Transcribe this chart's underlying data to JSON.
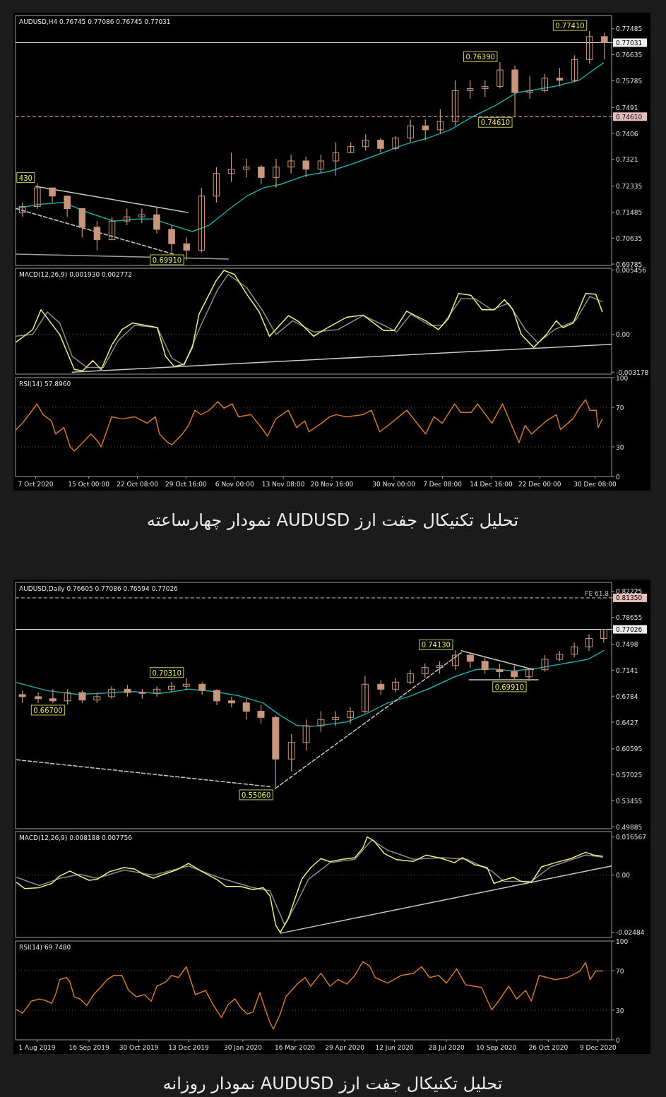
{
  "chart_data": [
    {
      "type": "candlestick",
      "title": "AUDUSD,H4 0.76745 0.77086 0.76745 0.77031",
      "color": "#c8967d",
      "tick_labels": "y",
      "xlim": [
        "2020-10-03T23:00",
        "2021-01-01T20:00"
      ],
      "ylim": [
        0.6974,
        0.7792
      ],
      "yticks": [
        0.77485,
        {
          "value": 0.77031,
          "label": "0.77031"
        },
        0.76635,
        0.75785,
        0.7491,
        {
          "value": 0.7461,
          "label": "0.74610"
        },
        0.7406,
        0.7321,
        0.72335,
        0.71485,
        0.70635,
        0.69785
      ],
      "x": [
        "2020-10-05T00:00",
        "2020-10-07T06:00",
        "2020-10-09T12:00",
        "2020-10-11T18:00",
        "2020-10-14T00:00",
        "2020-10-16T06:00",
        "2020-10-18T12:00",
        "2020-10-20T18:00",
        "2020-10-23T00:00",
        "2020-10-25T06:00",
        "2020-10-27T12:00",
        "2020-10-29T18:00",
        "2020-11-01T00:00",
        "2020-11-03T06:00",
        "2020-11-05T12:00",
        "2020-11-07T18:00",
        "2020-11-10T00:00",
        "2020-11-12T06:00",
        "2020-11-14T12:00",
        "2020-11-16T18:00",
        "2020-11-19T00:00",
        "2020-11-21T06:00",
        "2020-11-23T12:00",
        "2020-11-25T18:00",
        "2020-11-28T00:00",
        "2020-11-30T06:00",
        "2020-12-02T12:00",
        "2020-12-04T18:00",
        "2020-12-07T00:00",
        "2020-12-09T06:00",
        "2020-12-11T12:00",
        "2020-12-13T18:00",
        "2020-12-16T00:00",
        "2020-12-18T06:00",
        "2020-12-20T12:00",
        "2020-12-22T18:00",
        "2020-12-25T00:00",
        "2020-12-27T06:00",
        "2020-12-29T12:00",
        "2020-12-31T18:00"
      ],
      "ohlc": [
        [
          0.7146,
          0.718,
          0.7133,
          0.7167
        ],
        [
          0.7167,
          0.7243,
          0.716,
          0.7228
        ],
        [
          0.7228,
          0.7228,
          0.718,
          0.7201
        ],
        [
          0.7201,
          0.7201,
          0.7133,
          0.716
        ],
        [
          0.716,
          0.716,
          0.7065,
          0.7099
        ],
        [
          0.7099,
          0.7119,
          0.7024,
          0.7058
        ],
        [
          0.7058,
          0.7133,
          0.7058,
          0.7119
        ],
        [
          0.7119,
          0.716,
          0.7106,
          0.7133
        ],
        [
          0.7133,
          0.716,
          0.7112,
          0.714
        ],
        [
          0.714,
          0.7167,
          0.7079,
          0.7092
        ],
        [
          0.7092,
          0.7106,
          0.7017,
          0.7045
        ],
        [
          0.7045,
          0.7065,
          0.6991,
          0.7024
        ],
        [
          0.7024,
          0.7228,
          0.7017,
          0.7201
        ],
        [
          0.7201,
          0.7296,
          0.718,
          0.7275
        ],
        [
          0.7275,
          0.7343,
          0.7248,
          0.7289
        ],
        [
          0.7289,
          0.7323,
          0.7262,
          0.7296
        ],
        [
          0.7296,
          0.7302,
          0.7241,
          0.7262
        ],
        [
          0.7262,
          0.7323,
          0.7228,
          0.7296
        ],
        [
          0.7296,
          0.7336,
          0.7275,
          0.7316
        ],
        [
          0.7316,
          0.733,
          0.7262,
          0.7289
        ],
        [
          0.7289,
          0.7336,
          0.7275,
          0.7316
        ],
        [
          0.7316,
          0.7377,
          0.7268,
          0.7343
        ],
        [
          0.7343,
          0.7377,
          0.7343,
          0.7363
        ],
        [
          0.7363,
          0.7404,
          0.735,
          0.7384
        ],
        [
          0.7384,
          0.7391,
          0.7343,
          0.7357
        ],
        [
          0.7357,
          0.7397,
          0.735,
          0.7391
        ],
        [
          0.7391,
          0.7452,
          0.7377,
          0.7431
        ],
        [
          0.7431,
          0.7452,
          0.7384,
          0.7418
        ],
        [
          0.7418,
          0.7485,
          0.7404,
          0.7445
        ],
        [
          0.7445,
          0.758,
          0.7431,
          0.7546
        ],
        [
          0.7546,
          0.758,
          0.7519,
          0.7553
        ],
        [
          0.7553,
          0.758,
          0.7526,
          0.756
        ],
        [
          0.756,
          0.7639,
          0.7553,
          0.7614
        ],
        [
          0.7614,
          0.7628,
          0.7461,
          0.754
        ],
        [
          0.754,
          0.7594,
          0.7519,
          0.7546
        ],
        [
          0.7546,
          0.7601,
          0.754,
          0.7587
        ],
        [
          0.7587,
          0.7621,
          0.756,
          0.758
        ],
        [
          0.758,
          0.7662,
          0.7574,
          0.7648
        ],
        [
          0.7648,
          0.7741,
          0.7635,
          0.7723
        ],
        [
          0.7723,
          0.7736,
          0.7648,
          0.7703
        ]
      ],
      "series": [
        {
          "type": "line",
          "color": "#1fa5a5",
          "x": [
            "2020-10-04T01:00",
            "2020-10-07T11:00",
            "2020-10-11T05:00",
            "2020-10-15T00:00",
            "2020-10-18T19:00",
            "2020-10-22T13:00",
            "2020-10-24T18:00",
            "2020-10-27T12:00",
            "2020-10-30T15:00",
            "2020-11-02T04:00",
            "2020-11-05T07:00",
            "2020-11-07T20:00",
            "2020-11-10T08:00",
            "2020-11-12T21:00",
            "2020-11-16T15:00",
            "2020-11-20T08:00",
            "2020-11-24T02:00",
            "2020-11-27T21:00",
            "2020-12-01T16:00",
            "2020-12-05T10:00",
            "2020-12-08T12:00",
            "2020-12-11T15:00",
            "2020-12-15T10:00",
            "2020-12-18T13:00",
            "2020-12-20T11:00",
            "2020-12-24T05:00",
            "2020-12-27T22:00",
            "2020-12-31T14:00"
          ],
          "values": [
            0.716,
            0.7174,
            0.718,
            0.7146,
            0.7119,
            0.7126,
            0.7126,
            0.7106,
            0.7085,
            0.7106,
            0.716,
            0.7201,
            0.7228,
            0.7239,
            0.7268,
            0.7282,
            0.7309,
            0.7339,
            0.737,
            0.7393,
            0.7418,
            0.7458,
            0.7499,
            0.754,
            0.7546,
            0.756,
            0.758,
            0.7637
          ]
        },
        {
          "type": "line",
          "color": "#c8c8c8",
          "line_style": "solid",
          "x": [
            "2020-10-07T00:00",
            "2020-10-30T00:00"
          ],
          "values": [
            0.7233,
            0.7147
          ]
        },
        {
          "type": "line",
          "color": "#c8c8c8",
          "line_style": "dashed",
          "x": [
            "2020-10-04T01:00",
            "2020-10-27T18:00"
          ],
          "values": [
            0.716,
            0.7011
          ]
        },
        {
          "type": "line",
          "color": "#a0a0a0",
          "line_style": "solid",
          "x": [
            "2020-10-04T01:00",
            "2020-11-05T01:00"
          ],
          "values": [
            0.7011,
            0.6995
          ]
        }
      ],
      "ref_lines": [
        {
          "axis": "y",
          "value": 0.77031,
          "color": "#f0f0f0",
          "line_style": "solid"
        },
        {
          "axis": "y",
          "value": 0.7461,
          "color": "#e6bcbc",
          "line_style": "dashed"
        }
      ],
      "annotations": [
        {
          "text": "0.77410",
          "x": "2020-12-29T12:00",
          "y": 0.7741
        },
        {
          "text": "0.76390",
          "x": "2020-12-16T00:00",
          "y": 0.7639
        },
        {
          "text": "0.74610",
          "x": "2020-12-18T06:00",
          "y": 0.7461
        },
        {
          "text": "0.69910",
          "x": "2020-10-29T18:00",
          "y": 0.6991
        },
        {
          "text": "430",
          "x": "2020-10-07T06:00",
          "y": 0.7243
        }
      ]
    },
    {
      "type": "line",
      "title": "MACD(12,26,9) 0.001930 0.002772",
      "tick_labels": "y",
      "xlim": [
        "2020-10-03T23:00",
        "2021-01-01T20:00"
      ],
      "ylim": [
        -0.00335,
        0.0056
      ],
      "yticks": [
        0.005456,
        {
          "value": 0,
          "label": "0.00"
        },
        -0.003178
      ],
      "series": [
        {
          "color": "#8a8a8a",
          "x": [
            "2020-10-04T01:00",
            "2020-10-06T13:00",
            "2020-10-08T18:00",
            "2020-10-10T15:00",
            "2020-10-12T12:00",
            "2020-10-14T17:00",
            "2020-10-17T05:00",
            "2020-10-19T10:00",
            "2020-10-21T22:00",
            "2020-10-25T08:00",
            "2020-10-27T13:00",
            "2020-10-29T09:00",
            "2020-10-31T22:00",
            "2020-11-03T10:00",
            "2020-11-05T00:00",
            "2020-11-07T20:00",
            "2020-11-10T08:00",
            "2020-11-12T06:00",
            "2020-11-14T18:00",
            "2020-11-17T22:00",
            "2020-11-21T13:00",
            "2020-11-25T09:00",
            "2020-11-28T12:00",
            "2020-11-30T10:00",
            "2020-12-02T13:00",
            "2020-12-05T10:00",
            "2020-12-07T08:00",
            "2020-12-10T03:00",
            "2020-12-12T06:00",
            "2020-12-14T19:00",
            "2020-12-17T07:00",
            "2020-12-19T20:00",
            "2020-12-21T17:00",
            "2020-12-24T05:00",
            "2020-12-27T09:00",
            "2020-12-29T13:00",
            "2020-12-31T10:00"
          ],
          "values": [
            -0.00015,
            0,
            0.0019,
            0.00097,
            -0.00184,
            -0.00278,
            -0.00278,
            -0.00053,
            0.00078,
            0.00059,
            -0.00202,
            -0.00258,
            0.00078,
            0.00377,
            0.00508,
            0.00396,
            0.0019,
            0,
            0.00116,
            0.00022,
            0.00041,
            0.0016,
            0.00078,
            0.00022,
            0.00171,
            0.00078,
            0.00078,
            0.00302,
            0.00302,
            0.00209,
            0.00265,
            0.00041,
            -0.00071,
            0.00041,
            0.00116,
            0.00321,
            0.00277
          ]
        },
        {
          "color": "#f0f080",
          "x": [
            "2020-10-04T01:00",
            "2020-10-06T13:00",
            "2020-10-07T19:00",
            "2020-10-10T15:00",
            "2020-10-12T20:00",
            "2020-10-14T02:00",
            "2020-10-15T15:00",
            "2020-10-16T21:00",
            "2020-10-18T11:00",
            "2020-10-20T00:00",
            "2020-10-21T14:00",
            "2020-10-25T08:00",
            "2020-10-26T14:00",
            "2020-10-27T21:00",
            "2020-10-29T09:00",
            "2020-10-30T15:00",
            "2020-10-31T15:00",
            "2020-11-03T04:00",
            "2020-11-04T09:00",
            "2020-11-05T23:00",
            "2020-11-07T20:00",
            "2020-11-09T17:00",
            "2020-11-11T06:00",
            "2020-11-14T03:00",
            "2020-11-15T16:00",
            "2020-11-17T22:00",
            "2020-11-19T17:00",
            "2020-11-22T20:00",
            "2020-11-25T09:00",
            "2020-11-28T12:00",
            "2020-11-30T01:00",
            "2020-12-01T22:00",
            "2020-12-04T19:00",
            "2020-12-06T17:00",
            "2020-12-08T05:00",
            "2020-12-09T18:00",
            "2020-12-11T15:00",
            "2020-12-13T07:00",
            "2020-12-15T04:00",
            "2020-12-16T16:00",
            "2020-12-17T23:00",
            "2020-12-19T05:00",
            "2020-12-21T02:00",
            "2020-12-23T00:00",
            "2020-12-24T12:00",
            "2020-12-25T12:00",
            "2020-12-27T01:00",
            "2020-12-28T22:00",
            "2020-12-30T11:00",
            "2020-12-31T10:00"
          ],
          "values": [
            -0.00064,
            0.00041,
            0.00209,
            0,
            -0.00296,
            -0.00307,
            -0.00221,
            -0.00296,
            -0.0009,
            0.00041,
            0.00097,
            0.00059,
            -0.00184,
            -0.0027,
            -0.00251,
            -0.00109,
            0.00171,
            0.00452,
            0.00542,
            0.00508,
            0.0034,
            0.0019,
            -0.00015,
            0.0016,
            0.00108,
            -0.00015,
            0.00048,
            0.00145,
            0.00164,
            0.00033,
            0.00033,
            0.00197,
            0.00116,
            0.00041,
            0.00134,
            0.00347,
            0.00332,
            0.00209,
            0.00209,
            0.00295,
            0.00209,
            0,
            -0.00109,
            0,
            0.00116,
            0.00059,
            0.00097,
            0.00347,
            0.0034,
            0.00193
          ]
        },
        {
          "color": "#c8c8c8",
          "x": [
            "2020-10-12T12:00",
            "2021-01-01T20:00"
          ],
          "values": [
            -0.00318,
            -0.00083
          ]
        }
      ],
      "ref_lines": [
        {
          "axis": "y",
          "value": 0,
          "color": "#5a5a5a",
          "line_style": "dotted"
        }
      ]
    },
    {
      "type": "line",
      "title": "RSI(14) 57.8960",
      "xlim": [
        "2020-10-03T23:00",
        "2021-01-01T20:00"
      ],
      "ylim": [
        0,
        100
      ],
      "yticks": [
        100,
        70,
        30,
        0
      ],
      "xticks": [
        {
          "value": "2020-10-07T00:00",
          "label": "7 Oct 2020"
        },
        {
          "value": "2020-10-15T00:00",
          "label": "15 Oct 00:00"
        },
        {
          "value": "2020-10-22T08:00",
          "label": "22 Oct 08:00"
        },
        {
          "value": "2020-10-29T16:00",
          "label": "29 Oct 16:00"
        },
        {
          "value": "2020-11-06T00:00",
          "label": "6 Nov 00:00"
        },
        {
          "value": "2020-11-13T08:00",
          "label": "13 Nov 08:00"
        },
        {
          "value": "2020-11-20T16:00",
          "label": "20 Nov 16:00"
        },
        {
          "value": "2020-11-30T00:00",
          "label": "30 Nov 00:00"
        },
        {
          "value": "2020-12-07T08:00",
          "label": "7 Dec 08:00"
        },
        {
          "value": "2020-12-14T16:00",
          "label": "14 Dec 16:00"
        },
        {
          "value": "2020-12-22T00:00",
          "label": "22 Dec 00:00"
        },
        {
          "value": "2020-12-30T08:00",
          "label": "30 Dec 08:00"
        }
      ],
      "series": [
        {
          "color": "#d2782a",
          "x": [
            "2020-10-04T01:00",
            "2020-10-05T00:00",
            "2020-10-06T06:00",
            "2020-10-07T04:00",
            "2020-10-08T03:00",
            "2020-10-09T09:00",
            "2020-10-10T00:00",
            "2020-10-11T06:00",
            "2020-10-12T05:00",
            "2020-10-12T20:00",
            "2020-10-14T02:00",
            "2020-10-15T08:00",
            "2020-10-16T06:00",
            "2020-10-16T21:00",
            "2020-10-18T11:00",
            "2020-10-20T00:00",
            "2020-10-21T22:00",
            "2020-10-23T19:00",
            "2020-10-25T01:00",
            "2020-10-25T16:00",
            "2020-10-26T22:00",
            "2020-10-27T13:00",
            "2020-10-29T03:00",
            "2020-10-30T01:00",
            "2020-10-31T00:00",
            "2020-10-31T22:00",
            "2020-11-02T04:00",
            "2020-11-03T11:00",
            "2020-11-04T09:00",
            "2020-11-05T15:00",
            "2020-11-06T14:00",
            "2020-11-08T11:00",
            "2020-11-10T00:00",
            "2020-11-10T23:00",
            "2020-11-12T05:00",
            "2020-11-14T02:00",
            "2020-11-15T08:00",
            "2020-11-16T14:00",
            "2020-11-17T05:00",
            "2020-11-19T02:00",
            "2020-11-20T08:00",
            "2020-11-21T07:00",
            "2020-11-22T20:00",
            "2020-11-25T09:00",
            "2020-11-26T15:00",
            "2020-11-27T21:00",
            "2020-11-29T03:00",
            "2020-12-01T23:00",
            "2020-12-03T12:00",
            "2020-12-04T19:00",
            "2020-12-06T01:00",
            "2020-12-07T07:00",
            "2020-12-09T04:00",
            "2020-12-10T02:00",
            "2020-12-11T16:00",
            "2020-12-12T15:00",
            "2020-12-14T19:00",
            "2020-12-16T09:00",
            "2020-12-17T15:00",
            "2020-12-18T21:00",
            "2020-12-19T19:00",
            "2020-12-20T18:00",
            "2020-12-22T23:00",
            "2020-12-24T12:00",
            "2020-12-25T03:00",
            "2020-12-27T00:00",
            "2020-12-27T23:00",
            "2020-12-28T22:00",
            "2020-12-29T13:00",
            "2020-12-30T12:00",
            "2020-12-30T19:00",
            "2020-12-31T10:00"
          ],
          "values": [
            47.4,
            53.9,
            64.8,
            73.5,
            62.6,
            56.1,
            43.0,
            49.6,
            30.0,
            25.7,
            34.3,
            43.0,
            36.5,
            30.0,
            60.4,
            58.3,
            60.4,
            53.9,
            60.4,
            43.0,
            34.3,
            32.2,
            43.0,
            51.7,
            67.0,
            62.6,
            67.0,
            75.7,
            69.1,
            73.5,
            60.4,
            62.6,
            49.6,
            40.9,
            58.3,
            67.0,
            49.6,
            56.1,
            45.2,
            53.9,
            60.4,
            62.6,
            60.4,
            62.6,
            67.0,
            45.2,
            51.7,
            67.0,
            53.9,
            43.0,
            60.4,
            53.9,
            73.5,
            64.8,
            64.8,
            73.5,
            53.9,
            73.5,
            53.9,
            34.3,
            51.7,
            43.0,
            56.1,
            62.6,
            47.4,
            58.3,
            69.1,
            77.8,
            67.0,
            67.0,
            49.6,
            57.9
          ]
        }
      ],
      "ref_lines": [
        {
          "axis": "y",
          "value": 70,
          "color": "#5a5a5a",
          "line_style": "dotted"
        },
        {
          "axis": "y",
          "value": 30,
          "color": "#5a5a5a",
          "line_style": "dotted"
        }
      ],
      "annotations": [
        "تحلیل تکنیکال جفت ارز AUDUSD نمودار چهارساعته"
      ]
    },
    {
      "type": "candlestick",
      "title": "AUDUSD,Daily 0.76605 0.77086 0.76594 0.77026",
      "color": "#c8967d",
      "tick_labels": "y",
      "xlim": [
        "2019-07-13",
        "2020-12-21"
      ],
      "ylim": [
        0.4962,
        0.8348
      ],
      "yticks": [
        0.82225,
        {
          "value": 0.8135,
          "label": "0.81350"
        },
        0.78655,
        {
          "value": 0.77026,
          "label": "0.77026"
        },
        0.7498,
        0.7141,
        0.6784,
        0.6427,
        0.60595,
        0.57025,
        0.53455,
        0.49885
      ],
      "x": [
        "2019-07-19",
        "2019-08-02",
        "2019-08-15",
        "2019-08-28",
        "2019-09-10",
        "2019-09-23",
        "2019-10-06",
        "2019-10-20",
        "2019-11-02",
        "2019-11-15",
        "2019-11-28",
        "2019-12-11",
        "2019-12-25",
        "2020-01-07",
        "2020-01-20",
        "2020-02-02",
        "2020-02-15",
        "2020-02-28",
        "2020-03-13",
        "2020-03-26",
        "2020-04-08",
        "2020-04-21",
        "2020-05-04",
        "2020-05-17",
        "2020-05-31",
        "2020-06-13",
        "2020-06-26",
        "2020-07-09",
        "2020-07-22",
        "2020-08-05",
        "2020-08-18",
        "2020-08-31",
        "2020-09-13",
        "2020-09-26",
        "2020-10-09",
        "2020-10-23",
        "2020-11-05",
        "2020-11-18",
        "2020-12-01",
        "2020-12-14"
      ],
      "ohlc": [
        [
          0.6806,
          0.6863,
          0.6691,
          0.6777
        ],
        [
          0.6777,
          0.6834,
          0.6691,
          0.6749
        ],
        [
          0.6749,
          0.688,
          0.6691,
          0.672
        ],
        [
          0.672,
          0.688,
          0.667,
          0.6834
        ],
        [
          0.6834,
          0.6863,
          0.6691,
          0.6731
        ],
        [
          0.6731,
          0.6834,
          0.6691,
          0.6777
        ],
        [
          0.6777,
          0.692,
          0.6749,
          0.688
        ],
        [
          0.688,
          0.6937,
          0.6777,
          0.6834
        ],
        [
          0.6834,
          0.688,
          0.6749,
          0.6823
        ],
        [
          0.6823,
          0.692,
          0.6777,
          0.688
        ],
        [
          0.688,
          0.6977,
          0.6834,
          0.692
        ],
        [
          0.692,
          0.7031,
          0.6863,
          0.6948
        ],
        [
          0.6948,
          0.6977,
          0.6806,
          0.6863
        ],
        [
          0.6863,
          0.688,
          0.6663,
          0.672
        ],
        [
          0.672,
          0.6777,
          0.6634,
          0.6691
        ],
        [
          0.6691,
          0.6749,
          0.6463,
          0.6577
        ],
        [
          0.6577,
          0.6663,
          0.6406,
          0.6492
        ],
        [
          0.6492,
          0.652,
          0.5506,
          0.592
        ],
        [
          0.592,
          0.6263,
          0.5749,
          0.6148
        ],
        [
          0.6148,
          0.6463,
          0.6034,
          0.6377
        ],
        [
          0.6377,
          0.6577,
          0.6291,
          0.6463
        ],
        [
          0.6463,
          0.6577,
          0.6377,
          0.6492
        ],
        [
          0.6492,
          0.6634,
          0.6406,
          0.6577
        ],
        [
          0.6577,
          0.7063,
          0.6549,
          0.6948
        ],
        [
          0.6948,
          0.7005,
          0.6806,
          0.688
        ],
        [
          0.688,
          0.7034,
          0.6834,
          0.6977
        ],
        [
          0.6977,
          0.7148,
          0.6948,
          0.7091
        ],
        [
          0.7091,
          0.7234,
          0.7034,
          0.7177
        ],
        [
          0.7177,
          0.7263,
          0.7091,
          0.7205
        ],
        [
          0.7205,
          0.7413,
          0.7148,
          0.7348
        ],
        [
          0.7348,
          0.7377,
          0.7177,
          0.7263
        ],
        [
          0.7263,
          0.732,
          0.7091,
          0.7148
        ],
        [
          0.7148,
          0.7234,
          0.7034,
          0.712
        ],
        [
          0.712,
          0.7205,
          0.7005,
          0.7051
        ],
        [
          0.7051,
          0.7148,
          0.6991,
          0.7148
        ],
        [
          0.7148,
          0.7348,
          0.712,
          0.7291
        ],
        [
          0.7291,
          0.7405,
          0.7263,
          0.736
        ],
        [
          0.736,
          0.752,
          0.732,
          0.7463
        ],
        [
          0.7463,
          0.7634,
          0.7405,
          0.7577
        ],
        [
          0.7577,
          0.7709,
          0.752,
          0.7703
        ]
      ],
      "series": [
        {
          "type": "line",
          "color": "#1fa5a5",
          "x": [
            "2019-07-14",
            "2019-08-10",
            "2019-09-05",
            "2019-09-23",
            "2019-10-23",
            "2019-11-17",
            "2019-12-13",
            "2020-01-04",
            "2020-01-26",
            "2020-02-17",
            "2020-03-03",
            "2020-03-18",
            "2020-04-01",
            "2020-05-01",
            "2020-05-19",
            "2020-06-06",
            "2020-06-25",
            "2020-07-13",
            "2020-08-04",
            "2020-08-23",
            "2020-09-06",
            "2020-09-25",
            "2020-10-17",
            "2020-11-08",
            "2020-11-30",
            "2020-12-14"
          ],
          "values": [
            0.697,
            0.686,
            0.681,
            0.682,
            0.685,
            0.682,
            0.688,
            0.685,
            0.679,
            0.669,
            0.652,
            0.638,
            0.637,
            0.643,
            0.655,
            0.669,
            0.678,
            0.689,
            0.705,
            0.715,
            0.716,
            0.713,
            0.717,
            0.723,
            0.729,
            0.741
          ]
        },
        {
          "type": "line",
          "color": "#c8c8c8",
          "line_style": "dashed",
          "x": [
            "2019-07-14",
            "2020-02-23"
          ],
          "values": [
            0.591,
            0.554
          ]
        },
        {
          "type": "line",
          "color": "#c8c8c8",
          "line_style": "dashed",
          "x": [
            "2020-02-28",
            "2020-08-10"
          ],
          "values": [
            0.552,
            0.738
          ]
        },
        {
          "type": "line",
          "color": "#c8c8c8",
          "line_style": "solid",
          "x": [
            "2020-08-10",
            "2020-10-13"
          ],
          "values": [
            0.741,
            0.715
          ]
        },
        {
          "type": "line",
          "color": "#c8c8c8",
          "line_style": "solid",
          "x": [
            "2020-08-17",
            "2020-10-17"
          ],
          "values": [
            0.701,
            0.701
          ]
        }
      ],
      "ref_lines": [
        {
          "axis": "y",
          "value": 0.8135,
          "color": "#e6bcbc",
          "line_style": "dashed",
          "label": "FE 61.8"
        },
        {
          "axis": "y",
          "value": 0.77026,
          "color": "#f0f0f0",
          "line_style": "solid"
        }
      ],
      "annotations": [
        {
          "text": "0.70310",
          "x": "2019-12-11",
          "y": 0.7031
        },
        {
          "text": "0.66700",
          "x": "2019-08-28",
          "y": 0.667
        },
        {
          "text": "0.55060",
          "x": "2020-02-28",
          "y": 0.5506
        },
        {
          "text": "0.74130",
          "x": "2020-08-05",
          "y": 0.7413
        },
        {
          "text": "0.69910",
          "x": "2020-10-09",
          "y": 0.6991
        }
      ]
    },
    {
      "type": "line",
      "title": "MACD(12,26,9) 0.008188 0.007756",
      "tick_labels": "y",
      "xlim": [
        "2019-07-13",
        "2020-12-21"
      ],
      "ylim": [
        -0.027,
        0.0189
      ],
      "yticks": [
        0.016567,
        {
          "value": 0,
          "label": "0.00"
        },
        -0.02484
      ],
      "series": [
        {
          "color": "#8a8a8a",
          "x": [
            "2019-07-14",
            "2019-08-03",
            "2019-08-21",
            "2019-09-08",
            "2019-09-23",
            "2019-10-17",
            "2019-11-12",
            "2019-12-13",
            "2020-01-08",
            "2020-02-08",
            "2020-02-23",
            "2020-03-07",
            "2020-03-18",
            "2020-03-28",
            "2020-04-16",
            "2020-05-08",
            "2020-05-23",
            "2020-06-06",
            "2020-06-29",
            "2020-07-24",
            "2020-08-15",
            "2020-09-06",
            "2020-09-17",
            "2020-10-11",
            "2020-10-28",
            "2020-11-28",
            "2020-12-13"
          ],
          "values": [
            -0.0009,
            -0.0045,
            -0.0014,
            0.0004,
            -0.0014,
            0.0022,
            0,
            0.004,
            -0.0009,
            -0.0054,
            -0.0068,
            -0.0216,
            -0.0117,
            -0.0018,
            0.0054,
            0.0069,
            0.0153,
            0.0108,
            0.0069,
            0.0076,
            0.0069,
            0.0018,
            -0.0027,
            -0.0027,
            0.0036,
            0.0087,
            0.0078
          ]
        },
        {
          "color": "#f0f080",
          "x": [
            "2019-07-14",
            "2019-07-21",
            "2019-08-03",
            "2019-08-14",
            "2019-08-21",
            "2019-08-30",
            "2019-09-08",
            "2019-09-16",
            "2019-09-23",
            "2019-10-04",
            "2019-10-17",
            "2019-10-26",
            "2019-11-03",
            "2019-11-12",
            "2019-11-21",
            "2019-12-02",
            "2019-12-13",
            "2019-12-24",
            "2020-01-08",
            "2020-01-15",
            "2020-01-28",
            "2020-02-08",
            "2020-02-17",
            "2020-02-23",
            "2020-02-28",
            "2020-03-03",
            "2020-03-10",
            "2020-03-22",
            "2020-03-30",
            "2020-04-08",
            "2020-04-16",
            "2020-04-27",
            "2020-05-08",
            "2020-05-15",
            "2020-05-19",
            "2020-05-25",
            "2020-06-03",
            "2020-06-14",
            "2020-06-29",
            "2020-07-10",
            "2020-07-24",
            "2020-08-04",
            "2020-08-11",
            "2020-08-22",
            "2020-09-02",
            "2020-09-08",
            "2020-09-16",
            "2020-09-25",
            "2020-10-02",
            "2020-10-11",
            "2020-10-20",
            "2020-11-01",
            "2020-11-15",
            "2020-11-28",
            "2020-12-05",
            "2020-12-13"
          ],
          "values": [
            -0.0032,
            -0.0058,
            -0.0054,
            -0.0036,
            -0.0004,
            0.0018,
            -0.0004,
            -0.0022,
            -0.0018,
            0.0015,
            0.0033,
            0.0027,
            0.0004,
            -0.0013,
            0.0004,
            0.0022,
            0.0051,
            0.0018,
            -0.0022,
            -0.0049,
            -0.0049,
            -0.0063,
            -0.0054,
            -0.009,
            -0.0216,
            -0.0248,
            -0.0189,
            -0.0018,
            0.0033,
            0.0072,
            0.0058,
            0.0069,
            0.0076,
            0.0117,
            0.0166,
            0.0148,
            0.0094,
            0.0067,
            0.006,
            0.0087,
            0.0072,
            0.0054,
            0.0076,
            0.0045,
            0.0033,
            -0.0036,
            -0.0022,
            -0.0009,
            -0.0027,
            -0.0032,
            0.0036,
            0.0054,
            0.0072,
            0.0099,
            0.0087,
            0.0082
          ]
        },
        {
          "color": "#c8c8c8",
          "x": [
            "2020-03-03",
            "2020-12-21"
          ],
          "values": [
            -0.0252,
            0.004
          ]
        }
      ],
      "ref_lines": [
        {
          "axis": "y",
          "value": 0,
          "color": "#5a5a5a",
          "line_style": "dotted"
        }
      ]
    },
    {
      "type": "line",
      "title": "RSI(14) 69.7480",
      "xlim": [
        "2019-07-13",
        "2020-12-21"
      ],
      "ylim": [
        0,
        100
      ],
      "yticks": [
        100,
        70,
        30,
        0
      ],
      "xticks": [
        {
          "value": "2019-08-01",
          "label": "1 Aug 2019"
        },
        {
          "value": "2019-09-16",
          "label": "16 Sep 2019"
        },
        {
          "value": "2019-10-30",
          "label": "30 Oct 2019"
        },
        {
          "value": "2019-12-13",
          "label": "13 Dec 2019"
        },
        {
          "value": "2020-01-30",
          "label": "30 Jan 2020"
        },
        {
          "value": "2020-03-16",
          "label": "16 Mar 2020"
        },
        {
          "value": "2020-04-29",
          "label": "29 Apr 2020"
        },
        {
          "value": "2020-06-12",
          "label": "12 Jun 2020"
        },
        {
          "value": "2020-07-28",
          "label": "28 Jul 2020"
        },
        {
          "value": "2020-09-10",
          "label": "10 Sep 2020"
        },
        {
          "value": "2020-10-26",
          "label": "26 Oct 2020"
        },
        {
          "value": "2020-12-09",
          "label": "9 Dec 2020"
        }
      ],
      "series": [
        {
          "color": "#d2782a",
          "x": [
            "2019-07-14",
            "2019-07-19",
            "2019-07-23",
            "2019-07-27",
            "2019-08-03",
            "2019-08-08",
            "2019-08-14",
            "2019-08-18",
            "2019-08-21",
            "2019-08-27",
            "2019-08-30",
            "2019-09-03",
            "2019-09-08",
            "2019-09-14",
            "2019-09-20",
            "2019-09-27",
            "2019-10-02",
            "2019-10-08",
            "2019-10-15",
            "2019-10-21",
            "2019-10-28",
            "2019-11-04",
            "2019-11-10",
            "2019-11-15",
            "2019-11-23",
            "2019-11-28",
            "2019-12-04",
            "2019-12-11",
            "2019-12-19",
            "2019-12-28",
            "2020-01-04",
            "2020-01-11",
            "2020-01-17",
            "2020-01-23",
            "2020-01-28",
            "2020-02-03",
            "2020-02-08",
            "2020-02-14",
            "2020-02-17",
            "2020-02-23",
            "2020-02-26",
            "2020-03-03",
            "2020-03-08",
            "2020-03-18",
            "2020-03-25",
            "2020-03-30",
            "2020-04-08",
            "2020-04-16",
            "2020-04-23",
            "2020-05-01",
            "2020-05-08",
            "2020-05-15",
            "2020-05-21",
            "2020-05-26",
            "2020-06-06",
            "2020-06-18",
            "2020-06-29",
            "2020-07-06",
            "2020-07-13",
            "2020-07-21",
            "2020-07-28",
            "2020-08-06",
            "2020-08-14",
            "2020-08-21",
            "2020-08-28",
            "2020-09-06",
            "2020-09-12",
            "2020-09-21",
            "2020-09-28",
            "2020-10-06",
            "2020-10-11",
            "2020-10-18",
            "2020-11-01",
            "2020-11-12",
            "2020-11-23",
            "2020-11-28",
            "2020-12-02",
            "2020-12-07",
            "2020-12-13"
          ],
          "values": [
            30.4,
            27.0,
            32.6,
            39.1,
            41.3,
            40.0,
            37.0,
            47.8,
            60.9,
            63.0,
            58.7,
            43.5,
            41.3,
            34.8,
            45.7,
            54.3,
            60.9,
            65.2,
            65.2,
            50.0,
            43.5,
            45.7,
            39.1,
            54.3,
            58.7,
            65.2,
            63.0,
            73.9,
            45.7,
            50.0,
            34.8,
            22.6,
            35.7,
            41.3,
            32.6,
            26.1,
            28.3,
            47.8,
            37.0,
            17.4,
            10.9,
            26.1,
            43.5,
            56.5,
            63.0,
            54.3,
            67.4,
            54.3,
            60.9,
            56.5,
            65.2,
            79.1,
            74.8,
            63.0,
            57.4,
            65.2,
            67.4,
            73.9,
            63.0,
            65.2,
            57.4,
            71.7,
            55.7,
            54.3,
            53.0,
            30.4,
            39.1,
            54.3,
            41.3,
            50.0,
            39.1,
            65.2,
            60.9,
            63.0,
            69.6,
            78.3,
            60.9,
            69.6,
            69.7
          ]
        }
      ],
      "ref_lines": [
        {
          "axis": "y",
          "value": 70,
          "color": "#5a5a5a",
          "line_style": "dotted"
        },
        {
          "axis": "y",
          "value": 30,
          "color": "#5a5a5a",
          "line_style": "dotted"
        }
      ],
      "annotations": [
        "تحلیل تکنیکال جفت ارز AUDUSD نمودار روزانه"
      ]
    }
  ]
}
